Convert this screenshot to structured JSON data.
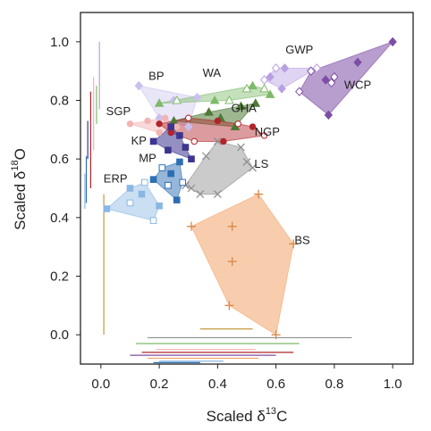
{
  "chart_data": {
    "type": "scatter",
    "title": "",
    "xlabel": "Scaled δ13C",
    "xlabel_parts": {
      "base": "Scaled δ",
      "sup": "13",
      "tail": "C"
    },
    "ylabel": "Scaled δ18O",
    "ylabel_parts": {
      "base": "Scaled δ",
      "sup": "18",
      "tail": "O"
    },
    "xlim": [
      -0.07,
      1.07
    ],
    "ylim": [
      -0.1,
      1.1
    ],
    "x_ticks": [
      "0.0",
      "0.2",
      "0.4",
      "0.6",
      "0.8",
      "1.0"
    ],
    "y_ticks": [
      "0.0",
      "0.2",
      "0.4",
      "0.6",
      "0.8",
      "1.0"
    ],
    "grid": false,
    "legend": "none",
    "series": [
      {
        "name": "WCP",
        "color": "#7d4ea5",
        "marker": "diamond-mixed",
        "fill_opacity": 0.55,
        "label_pos": [
          0.88,
          0.84
        ],
        "points": [
          [
            1.0,
            1.0
          ],
          [
            0.8,
            0.88
          ],
          [
            0.77,
            0.87
          ],
          [
            0.79,
            0.86
          ],
          [
            0.88,
            0.93
          ],
          [
            0.68,
            0.83
          ],
          [
            0.78,
            0.75
          ],
          [
            0.72,
            0.9
          ]
        ]
      },
      {
        "name": "GWP",
        "color": "#b9a0e3",
        "marker": "diamond-mixed",
        "fill_opacity": 0.45,
        "label_pos": [
          0.68,
          0.96
        ],
        "points": [
          [
            0.58,
            0.88
          ],
          [
            0.6,
            0.91
          ],
          [
            0.63,
            0.91
          ],
          [
            0.74,
            0.91
          ],
          [
            0.62,
            0.84
          ],
          [
            0.56,
            0.87
          ]
        ]
      },
      {
        "name": "BP",
        "color": "#c9c0ee",
        "marker": "diamond",
        "fill_opacity": 0.4,
        "label_pos": [
          0.19,
          0.87
        ],
        "points": [
          [
            0.13,
            0.85
          ],
          [
            0.25,
            0.8
          ],
          [
            0.33,
            0.81
          ],
          [
            0.3,
            0.71
          ],
          [
            0.2,
            0.74
          ]
        ]
      },
      {
        "name": "WA",
        "color": "#7fba6a",
        "marker": "triangle-mixed",
        "fill_opacity": 0.45,
        "label_pos": [
          0.38,
          0.88
        ],
        "points": [
          [
            0.2,
            0.79
          ],
          [
            0.26,
            0.8
          ],
          [
            0.39,
            0.8
          ],
          [
            0.44,
            0.8
          ],
          [
            0.52,
            0.85
          ],
          [
            0.56,
            0.84
          ],
          [
            0.58,
            0.82
          ],
          [
            0.5,
            0.84
          ]
        ]
      },
      {
        "name": "GHA",
        "color": "#4e7a36",
        "marker": "triangle",
        "fill_opacity": 0.55,
        "label_pos": [
          0.49,
          0.76
        ],
        "points": [
          [
            0.25,
            0.73
          ],
          [
            0.37,
            0.76
          ],
          [
            0.48,
            0.78
          ],
          [
            0.53,
            0.79
          ],
          [
            0.46,
            0.71
          ],
          [
            0.41,
            0.74
          ]
        ]
      },
      {
        "name": "SGP",
        "color": "#f2b3b3",
        "marker": "circle",
        "fill_opacity": 0.5,
        "label_pos": [
          0.06,
          0.75
        ],
        "points": [
          [
            0.1,
            0.72
          ],
          [
            0.16,
            0.73
          ],
          [
            0.22,
            0.74
          ],
          [
            0.26,
            0.71
          ],
          [
            0.2,
            0.69
          ]
        ]
      },
      {
        "name": "NGP",
        "color": "#b0242a",
        "marker": "circle-mixed",
        "fill_opacity": 0.45,
        "label_pos": [
          0.57,
          0.68
        ],
        "points": [
          [
            0.2,
            0.72
          ],
          [
            0.3,
            0.74
          ],
          [
            0.4,
            0.73
          ],
          [
            0.47,
            0.72
          ],
          [
            0.52,
            0.71
          ],
          [
            0.56,
            0.68
          ],
          [
            0.42,
            0.66
          ],
          [
            0.32,
            0.66
          ],
          [
            0.24,
            0.69
          ]
        ]
      },
      {
        "name": "KP",
        "color": "#3c3590",
        "marker": "square",
        "fill_opacity": 0.55,
        "label_pos": [
          0.13,
          0.65
        ],
        "points": [
          [
            0.18,
            0.66
          ],
          [
            0.24,
            0.71
          ],
          [
            0.27,
            0.68
          ],
          [
            0.29,
            0.64
          ],
          [
            0.31,
            0.6
          ],
          [
            0.23,
            0.63
          ]
        ]
      },
      {
        "name": "LS",
        "color": "#8c8c8c",
        "marker": "x",
        "fill_opacity": 0.45,
        "label_pos": [
          0.55,
          0.57
        ],
        "points": [
          [
            0.31,
            0.5
          ],
          [
            0.34,
            0.48
          ],
          [
            0.36,
            0.61
          ],
          [
            0.4,
            0.66
          ],
          [
            0.48,
            0.64
          ],
          [
            0.5,
            0.59
          ],
          [
            0.52,
            0.57
          ],
          [
            0.4,
            0.48
          ],
          [
            0.29,
            0.51
          ]
        ]
      },
      {
        "name": "MP",
        "color": "#2d6fb3",
        "marker": "square-mixed",
        "fill_opacity": 0.5,
        "label_pos": [
          0.16,
          0.59
        ],
        "points": [
          [
            0.18,
            0.53
          ],
          [
            0.23,
            0.51
          ],
          [
            0.26,
            0.46
          ],
          [
            0.28,
            0.52
          ],
          [
            0.27,
            0.59
          ],
          [
            0.21,
            0.57
          ],
          [
            0.24,
            0.55
          ]
        ]
      },
      {
        "name": "ERP",
        "color": "#8ab7e3",
        "marker": "square-mixed",
        "fill_opacity": 0.45,
        "label_pos": [
          0.05,
          0.52
        ],
        "points": [
          [
            0.02,
            0.43
          ],
          [
            0.1,
            0.45
          ],
          [
            0.14,
            0.48
          ],
          [
            0.18,
            0.39
          ],
          [
            0.2,
            0.44
          ],
          [
            0.15,
            0.52
          ],
          [
            0.1,
            0.5
          ]
        ]
      },
      {
        "name": "BS",
        "color": "#f2a46b",
        "marker": "plus",
        "fill_opacity": 0.55,
        "label_pos": [
          0.69,
          0.31
        ],
        "points": [
          [
            0.31,
            0.37
          ],
          [
            0.45,
            0.37
          ],
          [
            0.54,
            0.48
          ],
          [
            0.66,
            0.31
          ],
          [
            0.6,
            0.0
          ],
          [
            0.44,
            0.1
          ],
          [
            0.45,
            0.25
          ]
        ]
      }
    ],
    "x_range_bars": [
      {
        "y": 0.02,
        "x": [
          0.34,
          0.52
        ],
        "color": "#c39a3b"
      },
      {
        "y": -0.01,
        "x": [
          0.16,
          0.86
        ],
        "color": "#8f8f8f"
      },
      {
        "y": -0.03,
        "x": [
          0.12,
          0.68
        ],
        "color": "#7fba6a"
      },
      {
        "y": -0.05,
        "x": [
          0.19,
          0.53
        ],
        "color": "#f2b3b3"
      },
      {
        "y": -0.06,
        "x": [
          0.14,
          0.66
        ],
        "color": "#b0242a"
      },
      {
        "y": -0.07,
        "x": [
          0.1,
          0.6
        ],
        "color": "#7d4ea5"
      },
      {
        "y": -0.08,
        "x": [
          0.16,
          0.54
        ],
        "color": "#f2a46b"
      },
      {
        "y": -0.09,
        "x": [
          0.2,
          0.42
        ],
        "color": "#8ab7e3"
      },
      {
        "y": -0.095,
        "x": [
          0.18,
          0.34
        ],
        "color": "#2d6fb3"
      }
    ],
    "y_range_bars": [
      {
        "x": -0.005,
        "y": [
          0.77,
          1.0
        ],
        "color": "#b9a0e3"
      },
      {
        "x": -0.015,
        "y": [
          0.72,
          0.85
        ],
        "color": "#7fba6a"
      },
      {
        "x": -0.025,
        "y": [
          0.63,
          0.88
        ],
        "color": "#f2b3b3"
      },
      {
        "x": -0.035,
        "y": [
          0.5,
          0.83
        ],
        "color": "#b0242a"
      },
      {
        "x": -0.045,
        "y": [
          0.6,
          0.73
        ],
        "color": "#3c3590"
      },
      {
        "x": -0.05,
        "y": [
          0.45,
          0.61
        ],
        "color": "#2d6fb3"
      },
      {
        "x": -0.055,
        "y": [
          0.43,
          0.55
        ],
        "color": "#8ab7e3"
      },
      {
        "x": 0.01,
        "y": [
          0.0,
          0.48
        ],
        "color": "#c39a3b"
      }
    ]
  }
}
